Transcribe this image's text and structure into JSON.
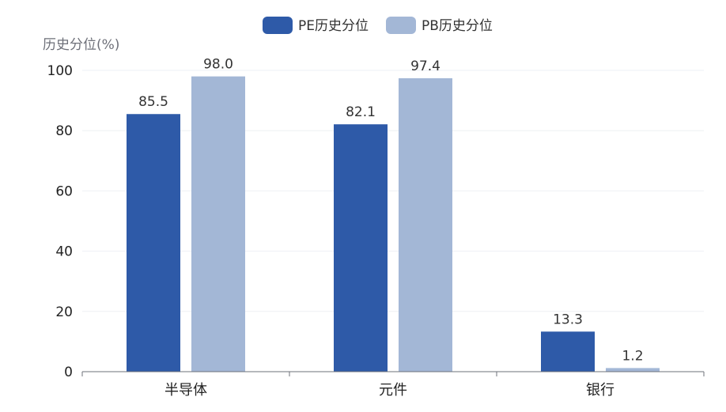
{
  "chart_data": {
    "type": "bar",
    "categories": [
      "半导体",
      "元件",
      "银行"
    ],
    "series": [
      {
        "name": "PE历史分位",
        "values": [
          85.5,
          82.1,
          13.3
        ],
        "color": "#2E5AA8"
      },
      {
        "name": "PB历史分位",
        "values": [
          98.0,
          97.4,
          1.2
        ],
        "color": "#A3B7D6"
      }
    ],
    "ylabel": "历史分位(%)",
    "ylim": [
      0,
      100
    ],
    "yticks": [
      0,
      20,
      40,
      60,
      80,
      100
    ],
    "data_labels": [
      [
        "85.5",
        "82.1",
        "13.3"
      ],
      [
        "98.0",
        "97.4",
        "1.2"
      ]
    ],
    "grid": true,
    "legend_position": "top-center"
  }
}
